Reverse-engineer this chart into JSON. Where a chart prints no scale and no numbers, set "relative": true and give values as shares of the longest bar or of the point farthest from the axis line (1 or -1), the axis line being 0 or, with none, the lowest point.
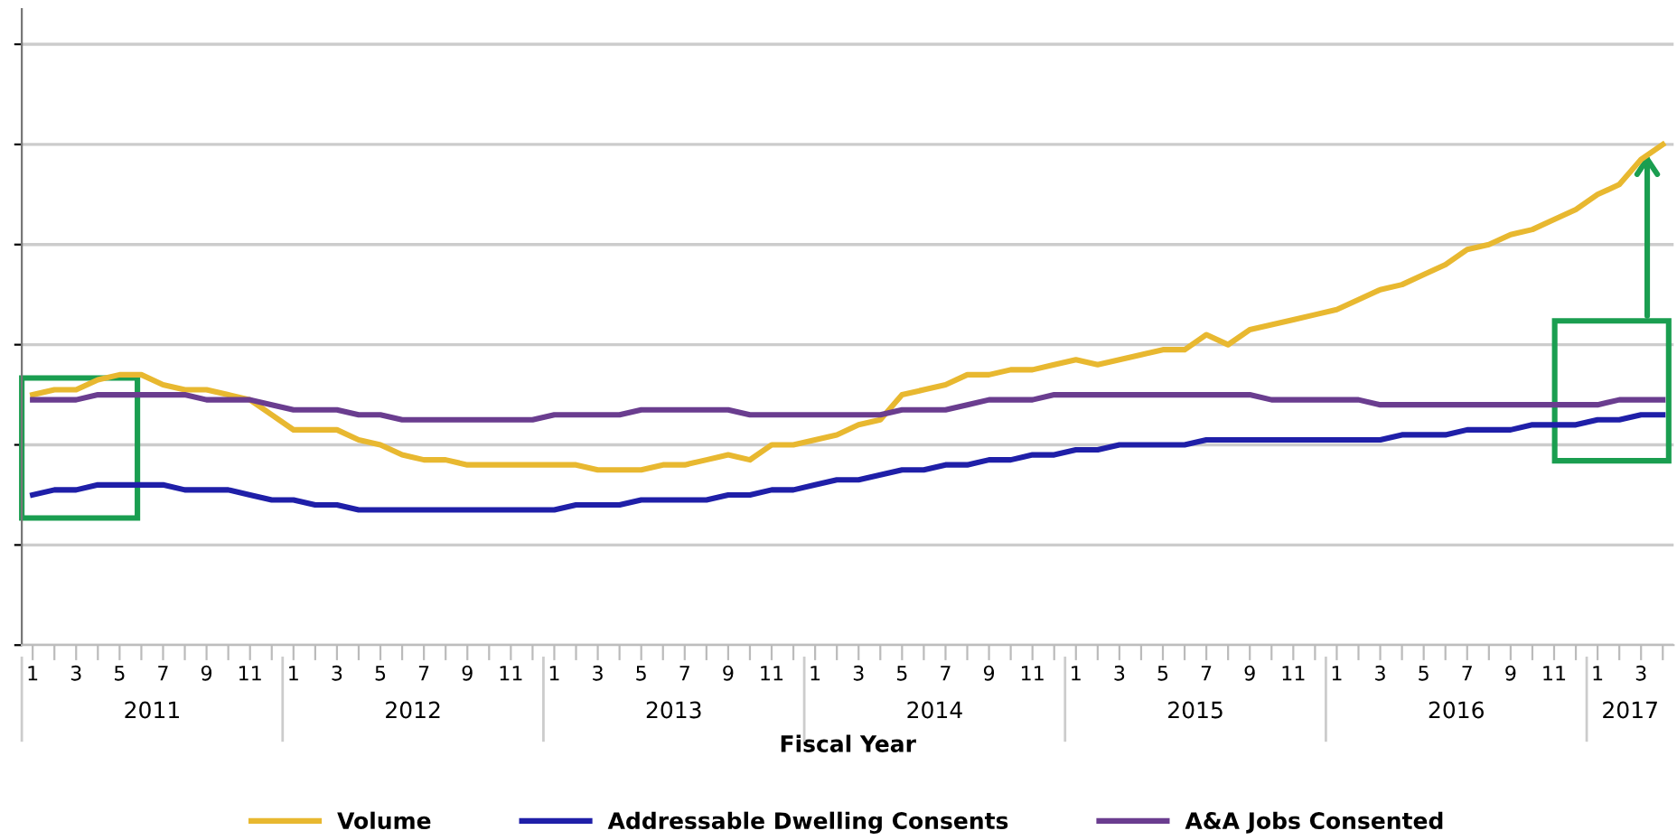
{
  "chart_data": {
    "type": "line",
    "relative": true,
    "xlabel": "Fiscal Year",
    "grid": "y",
    "legend": "bottom",
    "marker": "none",
    "line_style": "solid",
    "categories": [
      "1",
      null,
      "3",
      null,
      "5",
      null,
      "7",
      null,
      "9",
      null,
      "11",
      null,
      "1",
      null,
      "3",
      null,
      "5",
      null,
      "7",
      null,
      "9",
      null,
      "11",
      null,
      "1",
      null,
      "3",
      null,
      "5",
      null,
      "7",
      null,
      "9",
      null,
      "11",
      null,
      "1",
      null,
      "3",
      null,
      "5",
      null,
      "7",
      null,
      "9",
      null,
      "11",
      null,
      "1",
      null,
      "3",
      null,
      "5",
      null,
      "7",
      null,
      "9",
      null,
      "11",
      null,
      "1",
      null,
      "3",
      null,
      "5",
      null,
      "7",
      null,
      "9",
      null,
      "11",
      null,
      "1",
      null,
      "3",
      null
    ],
    "annotations": [
      "2011",
      "2012",
      "2013",
      "2014",
      "2015",
      "2016",
      "2017"
    ],
    "series": [
      {
        "name": "Volume",
        "color": "#e8b830",
        "values": [
          0.5,
          0.51,
          0.51,
          0.53,
          0.54,
          0.54,
          0.52,
          0.51,
          0.51,
          0.5,
          0.49,
          0.46,
          0.43,
          0.43,
          0.43,
          0.41,
          0.4,
          0.38,
          0.37,
          0.37,
          0.36,
          0.36,
          0.36,
          0.36,
          0.36,
          0.36,
          0.35,
          0.35,
          0.35,
          0.36,
          0.36,
          0.37,
          0.38,
          0.37,
          0.4,
          0.4,
          0.41,
          0.42,
          0.44,
          0.45,
          0.5,
          0.51,
          0.52,
          0.54,
          0.54,
          0.55,
          0.55,
          0.56,
          0.57,
          0.56,
          0.57,
          0.58,
          0.59,
          0.59,
          0.62,
          0.6,
          0.63,
          0.64,
          0.65,
          0.66,
          0.67,
          0.69,
          0.71,
          0.72,
          0.74,
          0.76,
          0.79,
          0.8,
          0.82,
          0.83,
          0.85,
          0.87,
          0.9,
          0.92,
          0.97,
          1.0
        ]
      },
      {
        "name": "Addressable Dwelling Consents",
        "color": "#1f1fa8",
        "values": [
          0.3,
          0.31,
          0.31,
          0.32,
          0.32,
          0.32,
          0.32,
          0.31,
          0.31,
          0.31,
          0.3,
          0.29,
          0.29,
          0.28,
          0.28,
          0.27,
          0.27,
          0.27,
          0.27,
          0.27,
          0.27,
          0.27,
          0.27,
          0.27,
          0.27,
          0.28,
          0.28,
          0.28,
          0.29,
          0.29,
          0.29,
          0.29,
          0.3,
          0.3,
          0.31,
          0.31,
          0.32,
          0.33,
          0.33,
          0.34,
          0.35,
          0.35,
          0.36,
          0.36,
          0.37,
          0.37,
          0.38,
          0.38,
          0.39,
          0.39,
          0.4,
          0.4,
          0.4,
          0.4,
          0.41,
          0.41,
          0.41,
          0.41,
          0.41,
          0.41,
          0.41,
          0.41,
          0.41,
          0.42,
          0.42,
          0.42,
          0.43,
          0.43,
          0.43,
          0.44,
          0.44,
          0.44,
          0.45,
          0.45,
          0.46,
          0.46
        ]
      },
      {
        "name": "A&A Jobs Consented",
        "color": "#6a3d8f",
        "values": [
          0.49,
          0.49,
          0.49,
          0.5,
          0.5,
          0.5,
          0.5,
          0.5,
          0.49,
          0.49,
          0.49,
          0.48,
          0.47,
          0.47,
          0.47,
          0.46,
          0.46,
          0.45,
          0.45,
          0.45,
          0.45,
          0.45,
          0.45,
          0.45,
          0.46,
          0.46,
          0.46,
          0.46,
          0.47,
          0.47,
          0.47,
          0.47,
          0.47,
          0.46,
          0.46,
          0.46,
          0.46,
          0.46,
          0.46,
          0.46,
          0.47,
          0.47,
          0.47,
          0.48,
          0.49,
          0.49,
          0.49,
          0.5,
          0.5,
          0.5,
          0.5,
          0.5,
          0.5,
          0.5,
          0.5,
          0.5,
          0.5,
          0.49,
          0.49,
          0.49,
          0.49,
          0.49,
          0.48,
          0.48,
          0.48,
          0.48,
          0.48,
          0.48,
          0.48,
          0.48,
          0.48,
          0.48,
          0.48,
          0.49,
          0.49,
          0.49
        ]
      }
    ]
  }
}
